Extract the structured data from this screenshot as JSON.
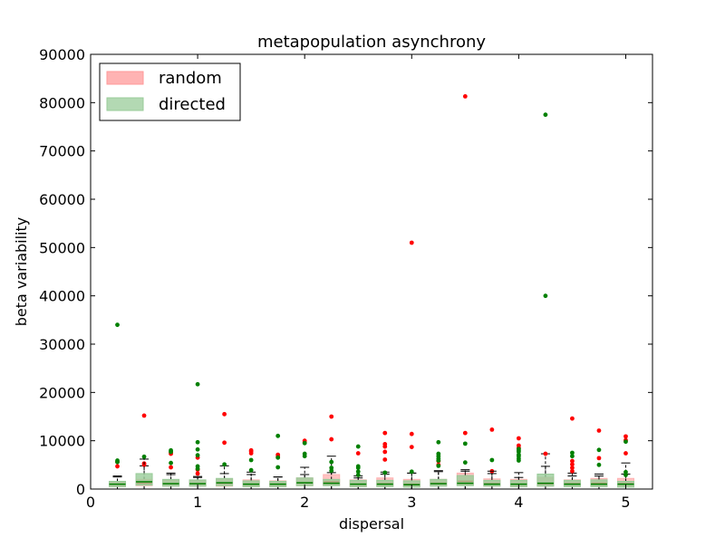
{
  "chart_data": {
    "type": "box",
    "title": "metapopulation asynchrony",
    "xlabel": "dispersal",
    "ylabel": "beta variability",
    "xlim": [
      0,
      5.25
    ],
    "ylim": [
      0,
      90000
    ],
    "xticks": [
      0,
      1,
      2,
      3,
      4,
      5
    ],
    "yticks": [
      0,
      10000,
      20000,
      30000,
      40000,
      50000,
      60000,
      70000,
      80000,
      90000
    ],
    "grid": false,
    "legend_position": "top-left",
    "series": [
      {
        "name": "random",
        "color": "#ff0000",
        "box_color": "#ffb3b3",
        "boxes": [
          {
            "x": 0.25,
            "q1": 500,
            "median": 1000,
            "q3": 1500,
            "whisker_low": 0,
            "whisker_high": 2700,
            "outliers": [
              4700,
              5600
            ]
          },
          {
            "x": 0.5,
            "q1": 700,
            "median": 1200,
            "q3": 2000,
            "whisker_low": 0,
            "whisker_high": 4800,
            "outliers": [
              5000,
              5300,
              15200
            ]
          },
          {
            "x": 0.75,
            "q1": 600,
            "median": 1100,
            "q3": 1800,
            "whisker_low": 0,
            "whisker_high": 3300,
            "outliers": [
              4500,
              7300,
              7600
            ]
          },
          {
            "x": 1.0,
            "q1": 600,
            "median": 1100,
            "q3": 1800,
            "whisker_low": 0,
            "whisker_high": 2600,
            "outliers": [
              3200,
              4000,
              6500
            ]
          },
          {
            "x": 1.25,
            "q1": 600,
            "median": 1200,
            "q3": 2100,
            "whisker_low": 0,
            "whisker_high": 3200,
            "outliers": [
              9600,
              15500
            ]
          },
          {
            "x": 1.5,
            "q1": 500,
            "median": 1000,
            "q3": 1900,
            "whisker_low": 0,
            "whisker_high": 3000,
            "outliers": [
              7400,
              7800,
              8000
            ]
          },
          {
            "x": 1.75,
            "q1": 500,
            "median": 1000,
            "q3": 1700,
            "whisker_low": 0,
            "whisker_high": 2500,
            "outliers": [
              6700,
              7100
            ]
          },
          {
            "x": 2.0,
            "q1": 700,
            "median": 1300,
            "q3": 2300,
            "whisker_low": 0,
            "whisker_high": 4500,
            "outliers": [
              9700,
              10000
            ]
          },
          {
            "x": 2.25,
            "q1": 800,
            "median": 1500,
            "q3": 3000,
            "whisker_low": 0,
            "whisker_high": 6800,
            "outliers": [
              10300,
              15000
            ]
          },
          {
            "x": 2.5,
            "q1": 500,
            "median": 1000,
            "q3": 1900,
            "whisker_low": 0,
            "whisker_high": 2700,
            "outliers": [
              7400
            ]
          },
          {
            "x": 2.75,
            "q1": 600,
            "median": 1100,
            "q3": 2300,
            "whisker_low": 0,
            "whisker_high": 3500,
            "outliers": [
              6100,
              7700,
              8800,
              9300,
              11600
            ]
          },
          {
            "x": 3.0,
            "q1": 500,
            "median": 1000,
            "q3": 2000,
            "whisker_low": 0,
            "whisker_high": 3300,
            "outliers": [
              8700,
              11400,
              51000
            ]
          },
          {
            "x": 3.25,
            "q1": 700,
            "median": 1200,
            "q3": 2000,
            "whisker_low": 0,
            "whisker_high": 3600,
            "outliers": [
              5000,
              5800
            ]
          },
          {
            "x": 3.5,
            "q1": 800,
            "median": 1600,
            "q3": 3300,
            "whisker_low": 0,
            "whisker_high": 4000,
            "outliers": [
              11600,
              81300
            ]
          },
          {
            "x": 3.75,
            "q1": 600,
            "median": 1100,
            "q3": 2100,
            "whisker_low": 0,
            "whisker_high": 3200,
            "outliers": [
              3700,
              12300
            ]
          },
          {
            "x": 4.0,
            "q1": 500,
            "median": 1000,
            "q3": 2000,
            "whisker_low": 0,
            "whisker_high": 3400,
            "outliers": [
              8500,
              9000,
              10500
            ]
          },
          {
            "x": 4.25,
            "q1": 600,
            "median": 1100,
            "q3": 2400,
            "whisker_low": 0,
            "whisker_high": 7300,
            "outliers": [
              7300
            ]
          },
          {
            "x": 4.5,
            "q1": 600,
            "median": 1100,
            "q3": 1900,
            "whisker_low": 0,
            "whisker_high": 3300,
            "outliers": [
              3700,
              4400,
              5100,
              5800,
              14600
            ]
          },
          {
            "x": 4.75,
            "q1": 600,
            "median": 1200,
            "q3": 2200,
            "whisker_low": 0,
            "whisker_high": 3100,
            "outliers": [
              6400,
              12100
            ]
          },
          {
            "x": 5.0,
            "q1": 600,
            "median": 1100,
            "q3": 2200,
            "whisker_low": 0,
            "whisker_high": 3100,
            "outliers": [
              7400,
              10100,
              10900
            ]
          }
        ]
      },
      {
        "name": "directed",
        "color": "#008000",
        "box_color": "#99cc99",
        "boxes": [
          {
            "x": 0.25,
            "q1": 500,
            "median": 1000,
            "q3": 1600,
            "whisker_low": 0,
            "whisker_high": 2500,
            "outliers": [
              5600,
              5900,
              34000
            ]
          },
          {
            "x": 0.5,
            "q1": 800,
            "median": 1500,
            "q3": 3200,
            "whisker_low": 0,
            "whisker_high": 6200,
            "outliers": [
              6700
            ]
          },
          {
            "x": 0.75,
            "q1": 600,
            "median": 1100,
            "q3": 2000,
            "whisker_low": 0,
            "whisker_high": 3000,
            "outliers": [
              5400,
              7700,
              8000
            ]
          },
          {
            "x": 1.0,
            "q1": 600,
            "median": 1100,
            "q3": 1900,
            "whisker_low": 0,
            "whisker_high": 2400,
            "outliers": [
              4200,
              4700,
              7000,
              8200,
              9700,
              21700
            ]
          },
          {
            "x": 1.25,
            "q1": 700,
            "median": 1300,
            "q3": 2200,
            "whisker_low": 0,
            "whisker_high": 4800,
            "outliers": [
              5100
            ]
          },
          {
            "x": 1.5,
            "q1": 500,
            "median": 1000,
            "q3": 1700,
            "whisker_low": 0,
            "whisker_high": 3500,
            "outliers": [
              3900,
              6000
            ]
          },
          {
            "x": 1.75,
            "q1": 500,
            "median": 1000,
            "q3": 1600,
            "whisker_low": 0,
            "whisker_high": 2500,
            "outliers": [
              4500,
              6500,
              11000
            ]
          },
          {
            "x": 2.0,
            "q1": 700,
            "median": 1300,
            "q3": 2300,
            "whisker_low": 0,
            "whisker_high": 3000,
            "outliers": [
              6800,
              7300,
              9500
            ]
          },
          {
            "x": 2.25,
            "q1": 700,
            "median": 1200,
            "q3": 2000,
            "whisker_low": 0,
            "whisker_high": 3400,
            "outliers": [
              3800,
              4400,
              5600
            ]
          },
          {
            "x": 2.5,
            "q1": 500,
            "median": 1000,
            "q3": 1800,
            "whisker_low": 0,
            "whisker_high": 2300,
            "outliers": [
              2900,
              3600,
              4400,
              4700,
              8800
            ]
          },
          {
            "x": 2.75,
            "q1": 500,
            "median": 1000,
            "q3": 1800,
            "whisker_low": 0,
            "whisker_high": 3100,
            "outliers": [
              3400
            ]
          },
          {
            "x": 3.0,
            "q1": 400,
            "median": 900,
            "q3": 1700,
            "whisker_low": 0,
            "whisker_high": 3300,
            "outliers": [
              3600
            ]
          },
          {
            "x": 3.25,
            "q1": 600,
            "median": 1100,
            "q3": 2000,
            "whisker_low": 0,
            "whisker_high": 3800,
            "outliers": [
              4800,
              5900,
              6300,
              6800,
              7300,
              9700
            ]
          },
          {
            "x": 3.5,
            "q1": 700,
            "median": 1200,
            "q3": 2800,
            "whisker_low": 0,
            "whisker_high": 3700,
            "outliers": [
              5500,
              9400
            ]
          },
          {
            "x": 3.75,
            "q1": 600,
            "median": 1000,
            "q3": 1800,
            "whisker_low": 0,
            "whisker_high": 3700,
            "outliers": [
              6000
            ]
          },
          {
            "x": 4.0,
            "q1": 500,
            "median": 1000,
            "q3": 1800,
            "whisker_low": 0,
            "whisker_high": 2400,
            "outliers": [
              5900,
              6300,
              6800,
              7100,
              7700,
              8000,
              8300
            ]
          },
          {
            "x": 4.25,
            "q1": 600,
            "median": 1200,
            "q3": 3100,
            "whisker_low": 0,
            "whisker_high": 4700,
            "outliers": [
              40000,
              77500
            ]
          },
          {
            "x": 4.5,
            "q1": 500,
            "median": 1000,
            "q3": 1800,
            "whisker_low": 0,
            "whisker_high": 2700,
            "outliers": [
              6800,
              7500
            ]
          },
          {
            "x": 4.75,
            "q1": 500,
            "median": 1000,
            "q3": 1900,
            "whisker_low": 0,
            "whisker_high": 2700,
            "outliers": [
              5000,
              8100
            ]
          },
          {
            "x": 5.0,
            "q1": 400,
            "median": 1000,
            "q3": 1600,
            "whisker_low": 0,
            "whisker_high": 5400,
            "outliers": [
              2900,
              3500,
              9800
            ]
          }
        ]
      }
    ]
  }
}
